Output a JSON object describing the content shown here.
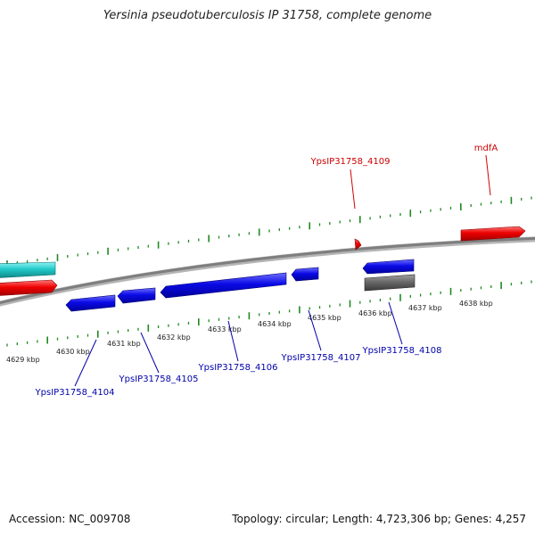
{
  "title": "Yersinia pseudotuberculosis IP 31758, complete genome",
  "footer": {
    "accession": "Accession: NC_009708",
    "summary": "Topology: circular; Length: 4,723,306 bp; Genes: 4,257"
  },
  "colors": {
    "backbone": "#8a8a8a",
    "ticks": "#1f8a1f",
    "forward_label": "#cc0000",
    "reverse_label": "#0000aa"
  },
  "scale_labels": [
    "4629 kbp",
    "4630 kbp",
    "4631 kbp",
    "4632 kbp",
    "4633 kbp",
    "4634 kbp",
    "4635 kbp",
    "4636 kbp",
    "4637 kbp",
    "4638 kbp"
  ],
  "gene_labels": {
    "forward": [
      "YpsIP31758_4109",
      "mdfA"
    ],
    "reverse": [
      "YpsIP31758_4104",
      "YpsIP31758_4105",
      "YpsIP31758_4106",
      "YpsIP31758_4107",
      "YpsIP31758_4108"
    ]
  }
}
